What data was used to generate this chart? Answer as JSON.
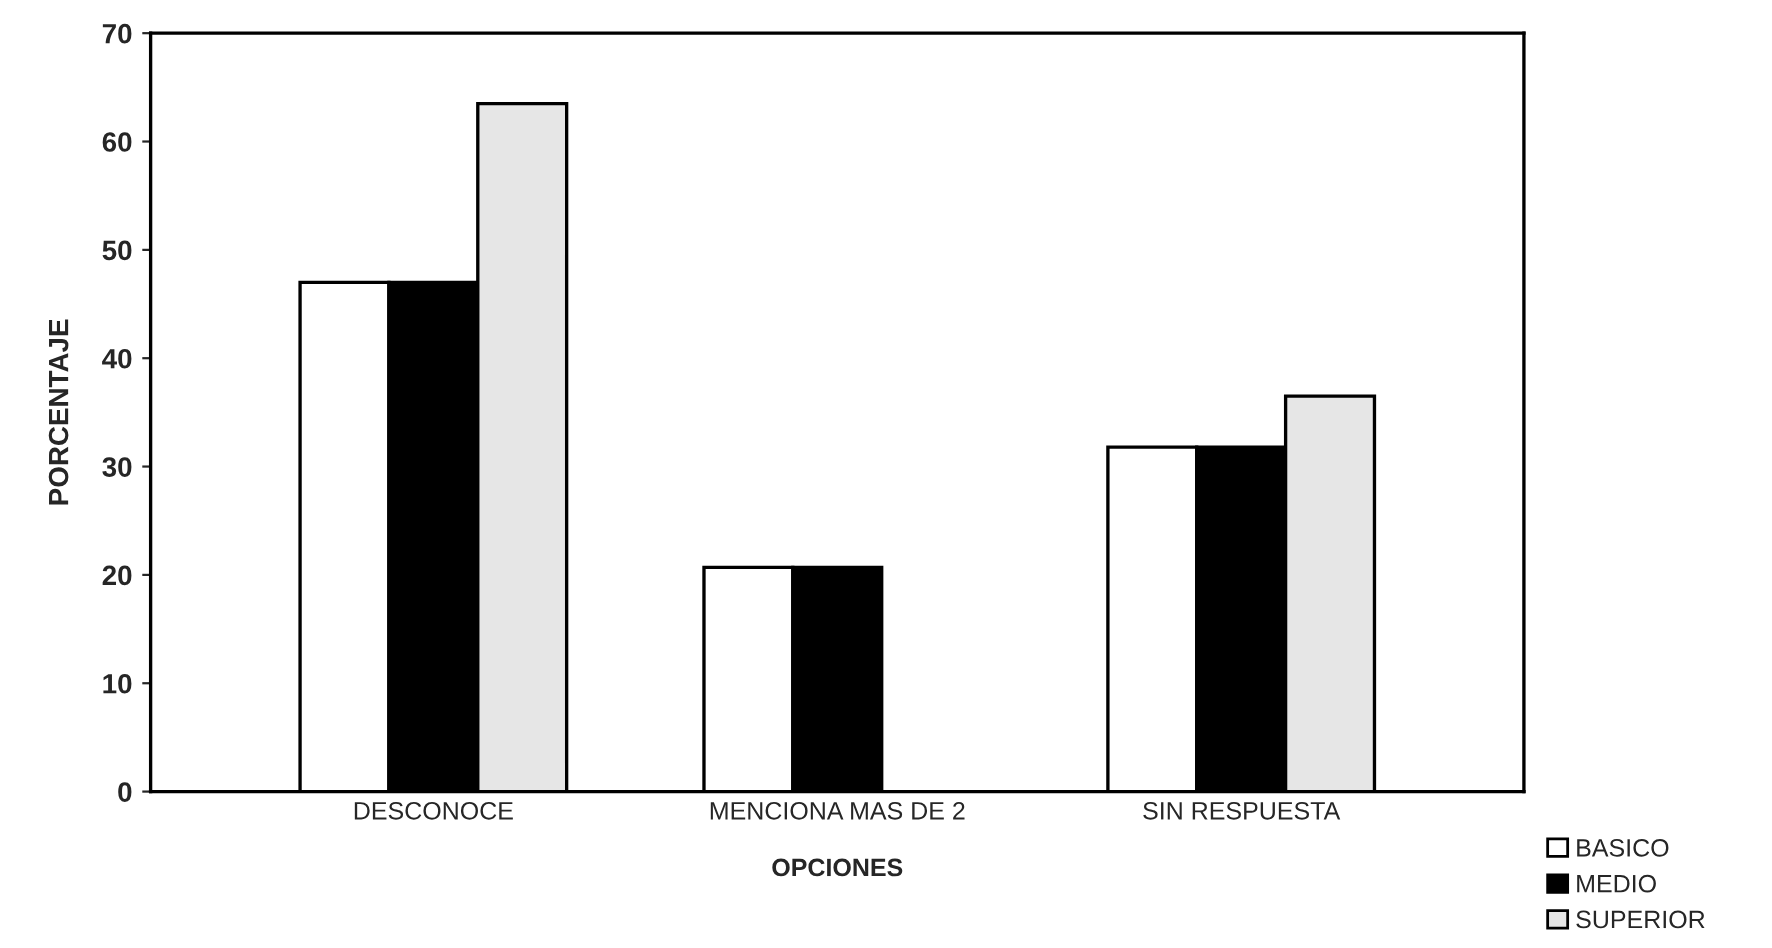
{
  "chart_data": {
    "type": "bar",
    "xlabel": "OPCIONES",
    "ylabel": "PORCENTAJE",
    "categories": [
      "DESCONOCE",
      "MENCIONA MAS DE 2",
      "SIN RESPUESTA"
    ],
    "series": [
      {
        "name": "BASICO",
        "color": "#ffffff",
        "values": [
          47,
          20.7,
          31.8
        ]
      },
      {
        "name": "MEDIO",
        "color": "#000000",
        "values": [
          47,
          20.7,
          31.8
        ]
      },
      {
        "name": "SUPERIOR",
        "color": "#e6e6e6",
        "values": [
          63.5,
          null,
          36.5
        ]
      }
    ],
    "ylim": [
      0,
      70
    ],
    "yticks": [
      0,
      10,
      20,
      30,
      40,
      50,
      60,
      70
    ],
    "grid": false,
    "legend": "bottom right"
  }
}
